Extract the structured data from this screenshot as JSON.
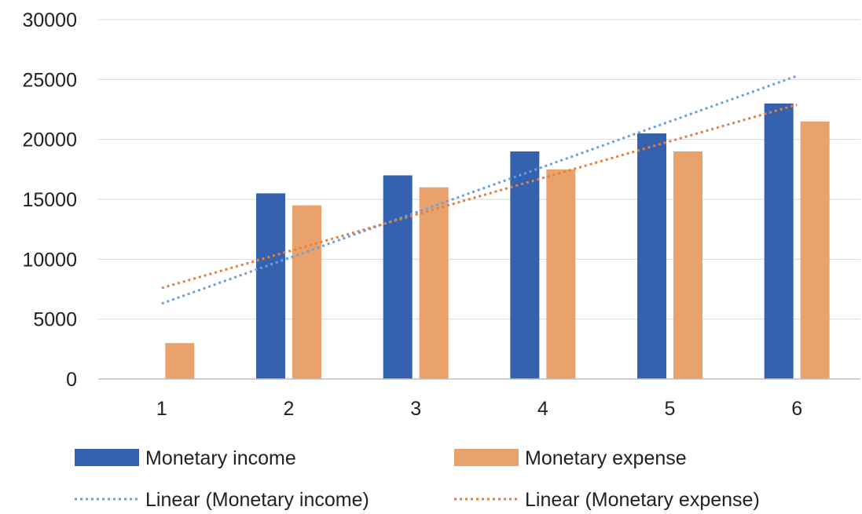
{
  "chart_data": {
    "type": "bar",
    "title": "",
    "xlabel": "",
    "ylabel": "",
    "categories": [
      "1",
      "2",
      "3",
      "4",
      "5",
      "6"
    ],
    "ylim": [
      0,
      30000
    ],
    "yticks": [
      0,
      5000,
      10000,
      15000,
      20000,
      25000,
      30000
    ],
    "yticks_labels": [
      "0",
      "5000",
      "10000",
      "15000",
      "20000",
      "25000",
      "30000"
    ],
    "grid": true,
    "legend_position": "bottom",
    "series": [
      {
        "name": "Monetary income",
        "type": "bar",
        "color": "#3462AE",
        "values": [
          0,
          15500,
          17000,
          19000,
          20500,
          23000
        ]
      },
      {
        "name": "Monetary expense",
        "type": "bar",
        "color": "#E9A26B",
        "values": [
          3000,
          14500,
          16000,
          17500,
          19000,
          21500
        ]
      }
    ],
    "trendlines": [
      {
        "name": "Linear (Monetary income)",
        "type": "linear",
        "of_series": "Monetary income",
        "color": "#6D9EE0",
        "style": "dotted",
        "values_at_x": {
          "1": 6300,
          "6": 25300
        }
      },
      {
        "name": "Linear (Monetary expense)",
        "type": "linear",
        "of_series": "Monetary expense",
        "color": "#E57E3F",
        "style": "dotted",
        "values_at_x": {
          "1": 7600,
          "6": 22900
        }
      }
    ],
    "gridline_color": "#D9D9D9",
    "axis_color": "#BFBFBF"
  }
}
